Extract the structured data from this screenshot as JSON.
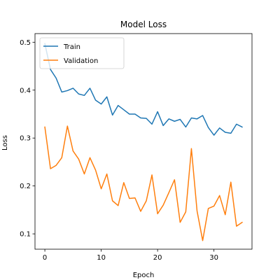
{
  "chart_data": {
    "type": "line",
    "title": "Model Loss",
    "xlabel": "Epoch",
    "ylabel": "Loss",
    "xlim": [
      -1.75,
      36.75
    ],
    "ylim": [
      0.068,
      0.518
    ],
    "xticks": [
      0,
      10,
      20,
      30
    ],
    "yticks": [
      0.1,
      0.2,
      0.3,
      0.4,
      0.5
    ],
    "xtick_labels": [
      "0",
      "10",
      "20",
      "30"
    ],
    "ytick_labels": [
      "0.1",
      "0.2",
      "0.3",
      "0.4",
      "0.5"
    ],
    "grid": false,
    "legend": "top-left",
    "x": [
      0,
      1,
      2,
      3,
      4,
      5,
      6,
      7,
      8,
      9,
      10,
      11,
      12,
      13,
      14,
      15,
      16,
      17,
      18,
      19,
      20,
      21,
      22,
      23,
      24,
      25,
      26,
      27,
      28,
      29,
      30,
      31,
      32,
      33,
      34,
      35
    ],
    "series": [
      {
        "name": "Train",
        "color": "#1f77b4",
        "values": [
          0.497,
          0.443,
          0.425,
          0.396,
          0.399,
          0.404,
          0.392,
          0.389,
          0.404,
          0.379,
          0.371,
          0.386,
          0.348,
          0.368,
          0.359,
          0.35,
          0.35,
          0.342,
          0.341,
          0.329,
          0.355,
          0.326,
          0.34,
          0.335,
          0.339,
          0.323,
          0.342,
          0.34,
          0.347,
          0.322,
          0.306,
          0.321,
          0.312,
          0.31,
          0.329,
          0.323
        ]
      },
      {
        "name": "Validation",
        "color": "#ff7f0e",
        "values": [
          0.323,
          0.236,
          0.243,
          0.259,
          0.325,
          0.273,
          0.256,
          0.225,
          0.259,
          0.233,
          0.194,
          0.225,
          0.169,
          0.159,
          0.207,
          0.174,
          0.175,
          0.147,
          0.169,
          0.223,
          0.142,
          0.16,
          0.186,
          0.213,
          0.124,
          0.146,
          0.278,
          0.148,
          0.086,
          0.153,
          0.158,
          0.18,
          0.14,
          0.208,
          0.116,
          0.124
        ]
      }
    ]
  }
}
